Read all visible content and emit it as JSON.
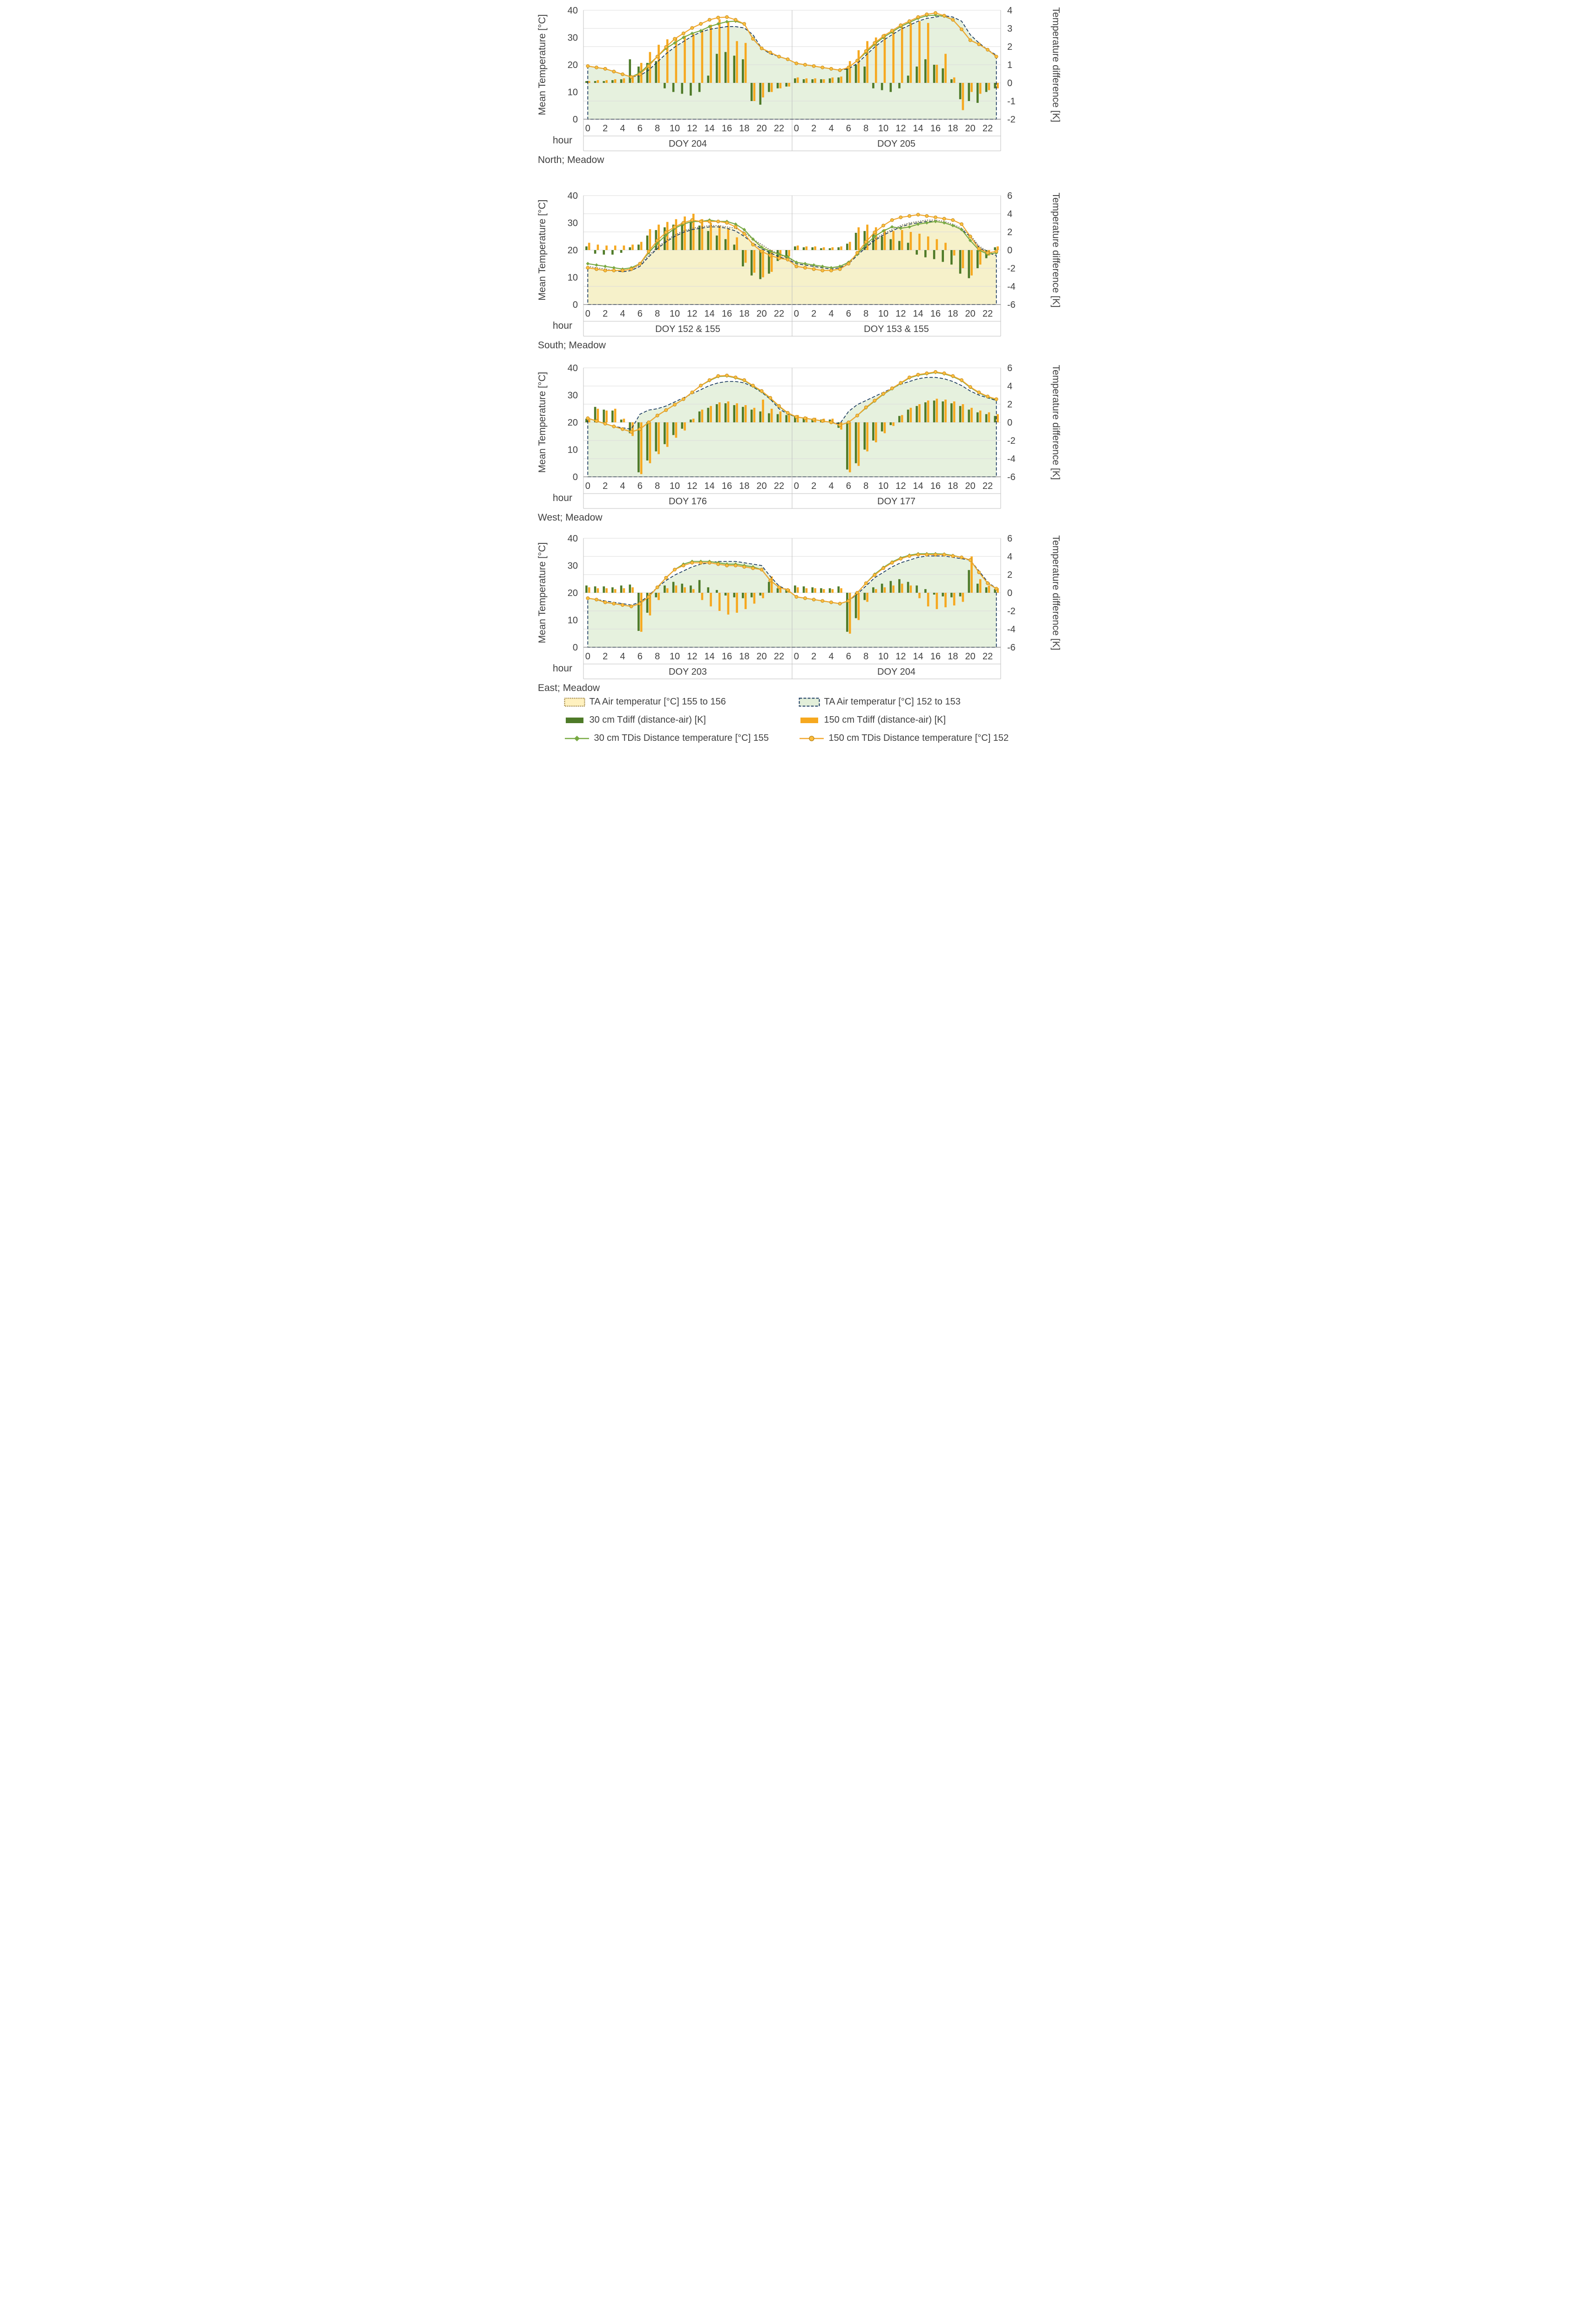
{
  "axis": {
    "left_title": "Mean Temperature [°C]",
    "right_title": "Temperature difference [K]",
    "x_title": "hour",
    "left_ticks": [
      0,
      10,
      20,
      30,
      40
    ]
  },
  "colors": {
    "bar_30": "#4E7A28",
    "bar_150": "#F6A81F",
    "line_30": "#78A943",
    "line_150": "#F2A72E",
    "marker_150_fill": "#FDBE3D",
    "marker_150_stroke": "#C08A1E",
    "air_152_stroke": "#17375E",
    "air_152_fill": "#E3EFDA",
    "air_155_stroke": "#595959",
    "air_155_fill": "#FFF1BF",
    "grid": "#DCDCDC",
    "border": "#BFBFBF",
    "axis_line": "#808080",
    "text": "#404040"
  },
  "legend": {
    "items": [
      {
        "id": "air-155",
        "label": "TA Air temperatur [°C] 155 to 156"
      },
      {
        "id": "air-152",
        "label": "TA Air temperatur [°C] 152 to 153"
      },
      {
        "id": "tdiff-30",
        "label": "30 cm Tdiff (distance-air) [K]"
      },
      {
        "id": "tdiff-150",
        "label": "150 cm Tdiff (distance-air) [K]"
      },
      {
        "id": "tdis-30",
        "label": "30 cm TDis Distance temperature [°C] 155"
      },
      {
        "id": "tdis-150",
        "label": "150 cm TDis Distance temperature [°C] 152"
      }
    ]
  },
  "chart_data": [
    {
      "id": "north",
      "type": "combo-bar-line-area",
      "caption": "North; Meadow",
      "day_labels": [
        "DOY 204",
        "DOY 205"
      ],
      "left_axis": {
        "min": 0,
        "max": 40,
        "step": 10
      },
      "right_axis": {
        "min": -2,
        "max": 4,
        "step": 1
      },
      "x_tick_step": 2,
      "hours_per_day": 24,
      "series": {
        "air_152": [
          19.5,
          19,
          18.5,
          17.5,
          16.5,
          15.5,
          16,
          18,
          21,
          24,
          26.5,
          28.5,
          30.5,
          32,
          33,
          33.5,
          34,
          34,
          33.5,
          31,
          26,
          24,
          23,
          22,
          20.5,
          20,
          19.5,
          19,
          18.5,
          18,
          18.5,
          20.5,
          23.5,
          26.5,
          29,
          31,
          33,
          34.5,
          36,
          37,
          37.5,
          38,
          37.5,
          36,
          31,
          28,
          25.5,
          23.5
        ],
        "air_155": null,
        "tdis_150": [
          19.5,
          19,
          18.5,
          17.5,
          16.5,
          15.5,
          16.5,
          19.5,
          23,
          26.5,
          29.5,
          31.5,
          33.5,
          35,
          36.5,
          37.3,
          37.5,
          36.5,
          35,
          29.5,
          26,
          24.5,
          23,
          22,
          20.5,
          20,
          19.5,
          19,
          18.5,
          18,
          19,
          21.5,
          25,
          28,
          30.5,
          32.5,
          34.5,
          36,
          37.5,
          38.5,
          39,
          38,
          36.5,
          33,
          29,
          27.5,
          25.5,
          23
        ],
        "tdis_30": [
          19.5,
          19,
          18.5,
          17.5,
          16.5,
          15.5,
          17,
          20,
          23,
          26,
          28,
          30,
          31.5,
          32.5,
          34,
          35,
          35.8,
          36,
          35,
          29.5,
          26,
          24.5,
          23,
          22,
          20.5,
          20,
          19.5,
          19,
          18.5,
          18,
          19,
          21.5,
          24.5,
          27.5,
          30,
          32,
          34,
          35.5,
          37,
          38,
          38.2,
          37.8,
          36.5,
          33,
          29,
          27.5,
          25.5,
          23
        ],
        "tdiff_150": [
          0.1,
          0.15,
          0.15,
          0.2,
          0.25,
          0.3,
          1.1,
          1.7,
          2.1,
          2.4,
          2.5,
          2.6,
          2.7,
          2.9,
          3.2,
          3.5,
          3.4,
          2.3,
          2.2,
          -1.0,
          -0.8,
          -0.5,
          -0.3,
          -0.2,
          0.3,
          0.25,
          0.25,
          0.2,
          0.3,
          0.35,
          1.2,
          1.8,
          2.3,
          2.5,
          2.7,
          2.9,
          3.1,
          3.3,
          3.4,
          3.3,
          1.0,
          1.6,
          0.3,
          -1.5,
          -0.5,
          -0.6,
          -0.4,
          -0.3
        ],
        "tdiff_30": [
          0.1,
          0.1,
          0.1,
          0.15,
          0.2,
          1.3,
          0.9,
          1.1,
          1.2,
          -0.3,
          -0.5,
          -0.6,
          -0.7,
          -0.5,
          0.4,
          1.6,
          1.7,
          1.5,
          1.3,
          -1.0,
          -1.2,
          -0.5,
          -0.3,
          -0.2,
          0.25,
          0.2,
          0.2,
          0.2,
          0.25,
          0.3,
          0.8,
          1.0,
          0.9,
          -0.3,
          -0.4,
          -0.5,
          -0.3,
          0.4,
          0.9,
          1.3,
          1.0,
          0.8,
          0.2,
          -0.9,
          -1.0,
          -1.1,
          -0.5,
          -0.3
        ]
      }
    },
    {
      "id": "south",
      "type": "combo-bar-line-area",
      "caption": "South; Meadow",
      "day_labels": [
        "DOY 152 & 155",
        "DOY 153 & 155"
      ],
      "left_axis": {
        "min": 0,
        "max": 40,
        "step": 10
      },
      "right_axis": {
        "min": -6,
        "max": 6,
        "step": 2
      },
      "x_tick_step": 2,
      "hours_per_day": 24,
      "series": {
        "air_152": [
          13.5,
          13,
          12.5,
          12.5,
          12,
          12.5,
          14,
          17.5,
          20.5,
          23,
          25,
          26.5,
          27.5,
          28,
          28.5,
          28.5,
          28,
          27,
          25,
          22.5,
          20.5,
          19,
          17.5,
          16.5,
          15,
          14.5,
          14,
          13.5,
          13,
          13.5,
          15,
          18,
          21,
          23.5,
          25.5,
          27,
          28.5,
          29.5,
          30,
          30.5,
          30.5,
          30,
          29,
          27.5,
          25,
          21,
          19,
          18
        ],
        "air_155": [
          14,
          13.5,
          13,
          12.5,
          12.5,
          13,
          14.5,
          18,
          21,
          23.5,
          25.5,
          27,
          28,
          28.5,
          29,
          29,
          28.5,
          28,
          26.5,
          24,
          22,
          20,
          18.5,
          17,
          15.5,
          15,
          14.5,
          14,
          13.5,
          14,
          15.5,
          18.5,
          21.5,
          24,
          26,
          27.5,
          29,
          30,
          30.5,
          31,
          31,
          30.5,
          29.5,
          28,
          25.5,
          21.5,
          19.5,
          18.5
        ],
        "tdis_150": [
          13.5,
          13,
          12.5,
          12.5,
          12.5,
          13,
          15,
          19.5,
          23.5,
          26.5,
          28.5,
          30,
          31,
          30.5,
          30.5,
          30.5,
          30,
          28.5,
          26,
          22,
          19.5,
          18,
          17,
          16.5,
          14,
          13.5,
          13,
          12.5,
          12.5,
          13,
          15,
          19,
          23,
          26.5,
          29,
          31,
          32,
          32.5,
          33,
          32.5,
          32,
          31.5,
          31,
          29.5,
          25,
          20.5,
          19,
          19.5
        ],
        "tdis_30": [
          15,
          14.5,
          14,
          13.5,
          13,
          13.5,
          15,
          19,
          22.5,
          25.5,
          28,
          29.5,
          30.5,
          30.5,
          31,
          30.5,
          30.5,
          29.5,
          27.5,
          24,
          21,
          19.5,
          18.5,
          17.5,
          15.5,
          15,
          14.5,
          14,
          13.5,
          14,
          15.5,
          18.5,
          22,
          25,
          27,
          28.5,
          28,
          28.5,
          29.5,
          30,
          30.5,
          30,
          29,
          27.5,
          23.5,
          20,
          18.5,
          19
        ],
        "tdiff_150": [
          0.8,
          0.6,
          0.5,
          0.5,
          0.5,
          0.6,
          0.9,
          2.3,
          2.8,
          3.1,
          3.4,
          3.7,
          4.0,
          3.4,
          3.0,
          2.7,
          2.4,
          1.4,
          -1.4,
          -2.5,
          -3.0,
          -2.4,
          -1.0,
          -0.7,
          0.5,
          0.4,
          0.4,
          0.3,
          0.3,
          0.4,
          0.9,
          2.5,
          2.8,
          2.5,
          2.3,
          2.1,
          2.2,
          2.0,
          1.8,
          1.5,
          1.2,
          0.8,
          -0.6,
          -2.0,
          -2.8,
          -1.6,
          -0.6,
          0.4
        ],
        "tdiff_30": [
          0.4,
          -0.4,
          -0.5,
          -0.5,
          -0.3,
          0.3,
          0.6,
          1.6,
          2.2,
          2.5,
          2.8,
          3.0,
          3.1,
          2.7,
          2.1,
          1.6,
          1.2,
          0.6,
          -1.8,
          -2.8,
          -3.2,
          -2.6,
          -1.2,
          -0.9,
          0.4,
          0.3,
          0.3,
          0.2,
          0.2,
          0.3,
          0.7,
          1.9,
          2.1,
          1.8,
          1.5,
          1.2,
          1.0,
          0.8,
          -0.5,
          -0.8,
          -1.0,
          -1.3,
          -1.6,
          -2.6,
          -3.1,
          -2.0,
          -0.9,
          0.3
        ]
      }
    },
    {
      "id": "west",
      "type": "combo-bar-line-area",
      "caption": "West; Meadow",
      "day_labels": [
        "DOY 176",
        "DOY 177"
      ],
      "left_axis": {
        "min": 0,
        "max": 40,
        "step": 10
      },
      "right_axis": {
        "min": -6,
        "max": 6,
        "step": 2
      },
      "x_tick_step": 2,
      "hours_per_day": 24,
      "series": {
        "air_152": [
          21.5,
          20.5,
          19.5,
          18.5,
          18,
          17.5,
          23,
          24.5,
          25,
          26,
          27.5,
          29,
          30.5,
          32,
          33.5,
          34.5,
          35,
          35,
          34.5,
          33,
          31,
          28.5,
          25,
          23,
          22,
          21.5,
          21,
          20.5,
          20,
          19.5,
          24,
          26.5,
          28,
          29.5,
          31,
          32.5,
          34,
          35,
          36,
          36.5,
          36.5,
          36,
          35,
          33.5,
          31.5,
          30,
          29,
          28
        ],
        "air_155": null,
        "tdis_150": [
          21.5,
          20.5,
          19.5,
          18.5,
          17.5,
          16.5,
          17.5,
          20,
          22.5,
          24.5,
          26.5,
          28.5,
          31,
          33.5,
          35.5,
          37,
          37.2,
          36.5,
          35.5,
          33.5,
          31.5,
          29,
          26,
          23.5,
          22,
          21.5,
          21,
          20.5,
          20,
          19,
          20,
          22.5,
          25.5,
          28,
          30.5,
          32.5,
          34.5,
          36.5,
          37.5,
          38,
          38.5,
          38,
          37,
          35.5,
          33,
          31,
          29.5,
          28.5
        ],
        "tdis_30": [
          21.5,
          20.5,
          19.5,
          18.5,
          17.5,
          16.5,
          17.5,
          20,
          22.5,
          24.5,
          26.5,
          28.5,
          31,
          33.5,
          35.3,
          36.8,
          37,
          36.3,
          35.3,
          33.3,
          31.3,
          28.8,
          25.8,
          23.3,
          22,
          21.5,
          21,
          20.5,
          20,
          19,
          20,
          22.5,
          25.3,
          27.8,
          30.3,
          32.3,
          34.3,
          36.3,
          37.3,
          37.8,
          38.3,
          37.8,
          36.8,
          35.3,
          32.8,
          30.8,
          29.3,
          28.3
        ],
        "tdiff_150": [
          0.3,
          1.5,
          1.3,
          1.5,
          0.4,
          -1.5,
          -5.7,
          -4.5,
          -3.5,
          -2.7,
          -1.7,
          -0.9,
          0.4,
          1.4,
          1.8,
          2.2,
          2.3,
          2.1,
          1.9,
          1.6,
          2.5,
          1.5,
          1.2,
          1.0,
          0.8,
          0.6,
          0.5,
          0.4,
          0.4,
          -0.8,
          -5.5,
          -4.8,
          -3.2,
          -2.2,
          -1.2,
          -0.4,
          0.8,
          1.6,
          2.0,
          2.4,
          2.6,
          2.5,
          2.3,
          2.0,
          1.6,
          1.3,
          1.1,
          0.9
        ],
        "tdiff_30": [
          0.4,
          1.7,
          1.4,
          1.3,
          0.3,
          -1.2,
          -5.5,
          -4.2,
          -3.2,
          -2.4,
          -1.4,
          -0.7,
          0.3,
          1.2,
          1.6,
          2.0,
          2.1,
          1.9,
          1.7,
          1.4,
          1.2,
          1.0,
          0.9,
          0.8,
          0.7,
          0.5,
          0.4,
          0.3,
          0.3,
          -0.6,
          -5.2,
          -4.5,
          -3.0,
          -2.0,
          -1.0,
          -0.3,
          0.7,
          1.4,
          1.8,
          2.2,
          2.4,
          2.3,
          2.1,
          1.8,
          1.4,
          1.1,
          0.9,
          0.7
        ]
      }
    },
    {
      "id": "east",
      "type": "combo-bar-line-area",
      "caption": "East; Meadow",
      "day_labels": [
        "DOY 203",
        "DOY 204"
      ],
      "left_axis": {
        "min": 0,
        "max": 40,
        "step": 10
      },
      "right_axis": {
        "min": -6,
        "max": 6,
        "step": 2
      },
      "x_tick_step": 2,
      "hours_per_day": 24,
      "series": {
        "air_152": [
          18,
          17.5,
          17,
          16.5,
          16,
          15.5,
          16.5,
          19,
          22,
          24.5,
          26.5,
          28,
          29.5,
          30.5,
          31,
          31.5,
          31.5,
          31.5,
          31,
          30.5,
          30,
          26,
          22.5,
          21,
          18.5,
          18,
          17.5,
          17,
          16.5,
          16,
          17,
          19.5,
          22.5,
          25.5,
          27.5,
          29.5,
          31,
          32,
          33,
          33.5,
          33.5,
          33.5,
          33,
          32.5,
          32,
          28,
          24,
          21.5
        ],
        "air_155": null,
        "tdis_150": [
          18,
          17.5,
          16.5,
          16,
          15.5,
          15,
          16,
          18.5,
          22,
          25.5,
          28.5,
          30,
          31,
          31,
          31,
          30.5,
          30,
          30,
          29.5,
          29,
          28.5,
          24.5,
          22,
          21,
          18.5,
          18,
          17.5,
          17,
          16.5,
          16,
          17,
          20,
          23.5,
          26.5,
          29,
          31,
          32.5,
          33.5,
          34,
          34,
          34,
          34,
          33.5,
          33,
          32,
          27.5,
          23.5,
          21.5
        ],
        "tdis_30": [
          18,
          17.5,
          16.5,
          16,
          15.5,
          15,
          16,
          18.5,
          22,
          25.5,
          28.5,
          30.5,
          31.5,
          31.5,
          31.5,
          31,
          30.5,
          30.5,
          30,
          29.5,
          28.5,
          24.5,
          22,
          21,
          18.5,
          18,
          17.5,
          17,
          16.5,
          16,
          17,
          20,
          23.5,
          26.8,
          29.3,
          31.3,
          32.8,
          33.8,
          34.3,
          34.3,
          34.3,
          34.2,
          33.7,
          33,
          32,
          27.5,
          23.5,
          21.5
        ],
        "tdiff_150": [
          0.6,
          0.5,
          0.5,
          0.4,
          0.5,
          0.6,
          -4.3,
          -2.5,
          -0.8,
          0.5,
          0.8,
          0.6,
          0.4,
          -0.8,
          -1.5,
          -2.0,
          -2.4,
          -2.2,
          -1.8,
          -1.2,
          -0.6,
          1.8,
          0.6,
          0.4,
          0.6,
          0.5,
          0.5,
          0.4,
          0.4,
          0.5,
          -4.5,
          -3.0,
          -1.0,
          0.4,
          0.6,
          0.8,
          1.0,
          0.8,
          -0.6,
          -1.5,
          -1.8,
          -1.6,
          -1.4,
          -1.0,
          4.0,
          1.5,
          0.8,
          0.5
        ],
        "tdiff_30": [
          0.8,
          0.7,
          0.7,
          0.6,
          0.8,
          0.9,
          -4.2,
          -2.2,
          -0.5,
          0.8,
          1.2,
          1.0,
          0.8,
          1.4,
          0.6,
          0.3,
          -0.3,
          -0.5,
          -0.6,
          -0.5,
          -0.3,
          1.2,
          0.5,
          0.3,
          0.8,
          0.7,
          0.6,
          0.5,
          0.5,
          0.7,
          -4.3,
          -2.8,
          -0.8,
          0.6,
          1.0,
          1.3,
          1.5,
          1.2,
          0.8,
          0.4,
          -0.2,
          -0.4,
          -0.5,
          -0.4,
          2.5,
          1.0,
          0.6,
          0.4
        ]
      }
    }
  ]
}
